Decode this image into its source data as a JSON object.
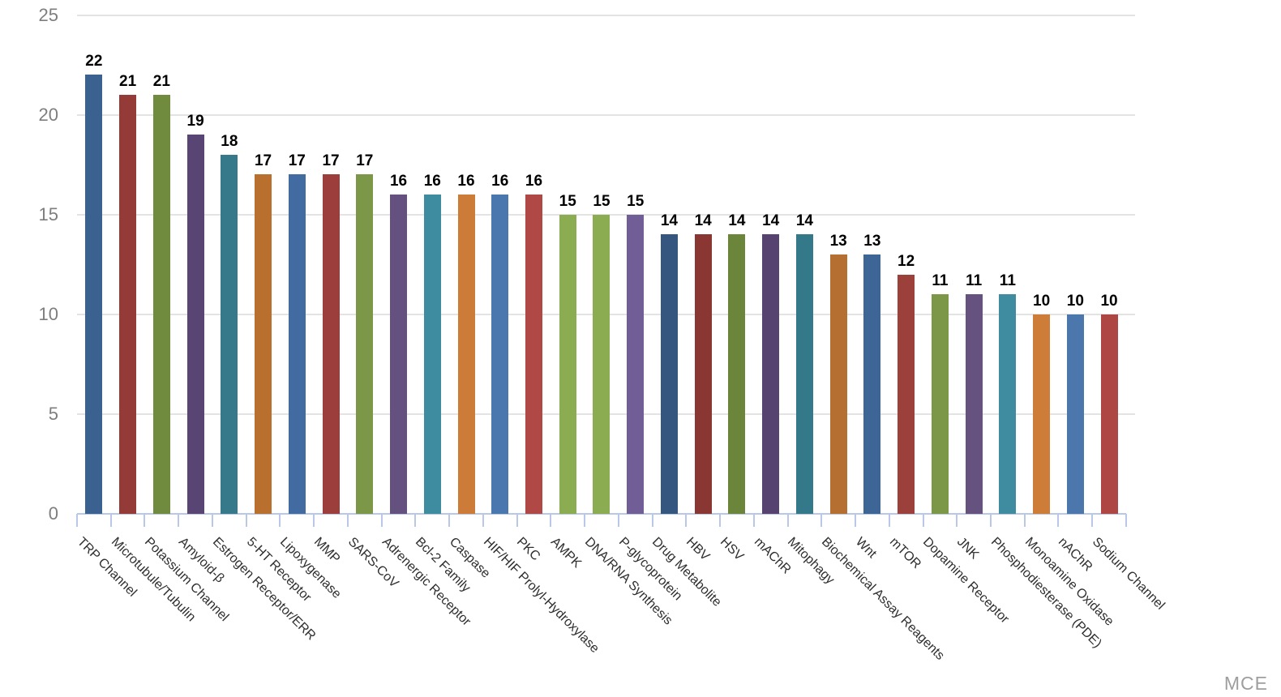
{
  "watermark": "MCE",
  "chart_data": {
    "type": "bar",
    "title": "",
    "xlabel": "",
    "ylabel": "",
    "legend": "none",
    "grid": "horizontal major gridlines every 5 units",
    "ylim": [
      0,
      25
    ],
    "yticks": [
      0,
      5,
      10,
      15,
      20,
      25
    ],
    "value_labels": "bold black number above each bar",
    "category_label_style": "rotated 45 degrees, below axis",
    "axis_line_color": "#b9c7e8",
    "gridline_color": "#e3e3e3",
    "ytick_label_color": "#7e7e7e",
    "category_label_color": "#2e2e2e",
    "value_label_color": "#000000",
    "categories": [
      "TRP Channel",
      "Microtubule/Tubulin",
      "Potassium Channel",
      "Amyloid-β",
      "Estrogen Receptor/ERR",
      "5-HT Receptor",
      "Lipoxygenase",
      "MMP",
      "SARS-CoV",
      "Adrenergic Receptor",
      "Bcl-2 Family",
      "Caspase",
      "HIF/HIF Prolyl-Hydroxylase",
      "PKC",
      "AMPK",
      "DNA/RNA Synthesis",
      "P-glycoprotein",
      "Drug Metabolite",
      "HBV",
      "HSV",
      "mAChR",
      "Mitophagy",
      "Biochemical Assay Reagents",
      "Wnt",
      "mTOR",
      "Dopamine Receptor",
      "JNK",
      "Phosphodiesterase (PDE)",
      "Monoamine Oxidase",
      "nAChR",
      "Sodium Channel"
    ],
    "values": [
      22,
      21,
      21,
      19,
      18,
      17,
      17,
      17,
      17,
      16,
      16,
      16,
      16,
      16,
      15,
      15,
      15,
      14,
      14,
      14,
      14,
      14,
      13,
      13,
      12,
      11,
      11,
      11,
      10,
      10,
      10
    ],
    "bar_colors": [
      "#3A618F",
      "#943A37",
      "#708A3E",
      "#594573",
      "#35798B",
      "#B96F2E",
      "#426CA1",
      "#9C3F3C",
      "#7D9749",
      "#64517F",
      "#3E8CA0",
      "#CC7B39",
      "#4A77AE",
      "#B04845",
      "#8CAC51",
      "#8CAC51",
      "#715E96",
      "#35567F",
      "#8A3734",
      "#6B853B",
      "#57436F",
      "#337989",
      "#B56F30",
      "#3D6596",
      "#9C403C",
      "#7D9749",
      "#65527F",
      "#3F8BA0",
      "#CD7D38",
      "#4B77AD",
      "#AE4744"
    ]
  }
}
